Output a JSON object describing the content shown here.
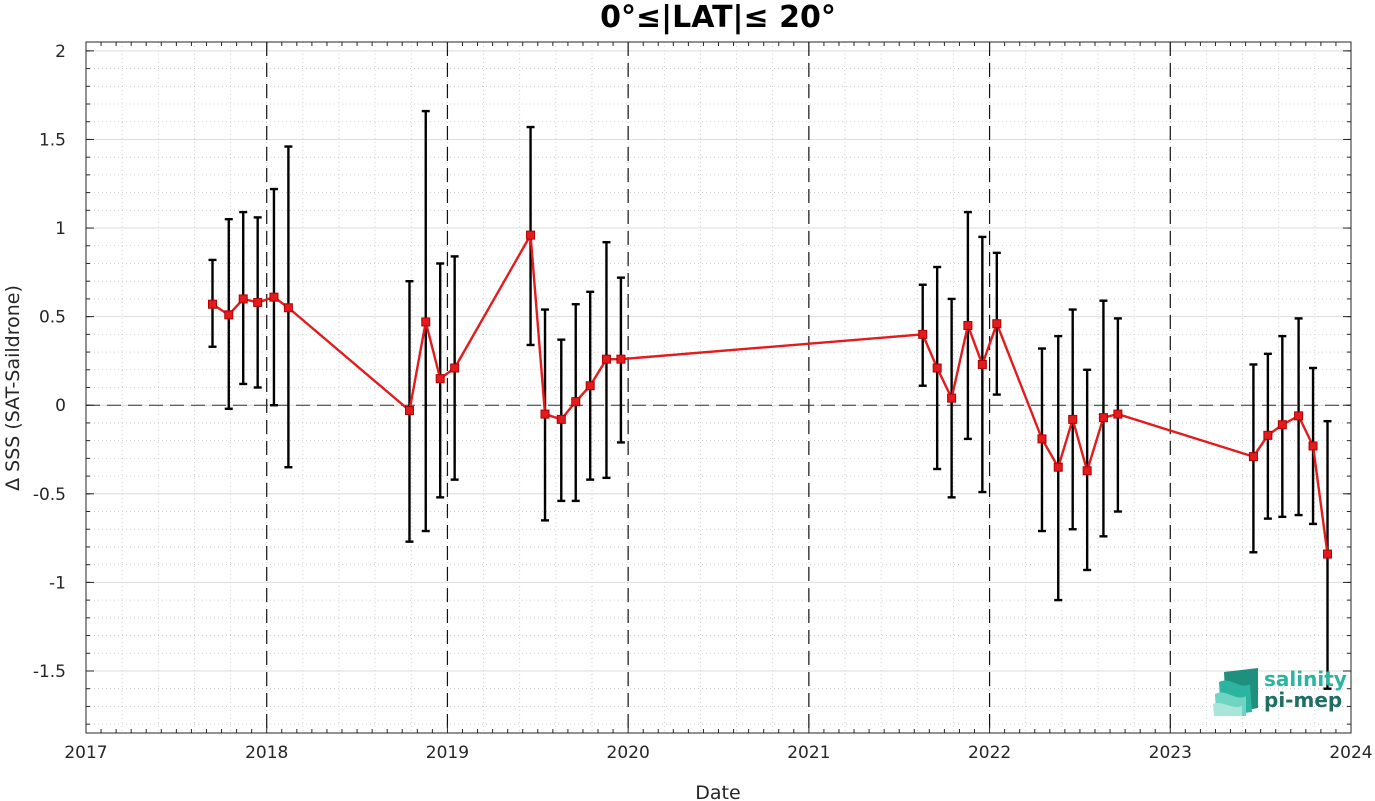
{
  "chart_data": {
    "type": "line",
    "title": "0°≤|LAT|≤ 20°",
    "xlabel": "Date",
    "ylabel": "Δ SSS (SAT-Saildrone)",
    "xlim": [
      2017.0,
      2024.0
    ],
    "ylim": [
      -1.85,
      2.05
    ],
    "xticks": [
      2017,
      2018,
      2019,
      2020,
      2021,
      2022,
      2023,
      2024
    ],
    "xtick_labels": [
      "2017",
      "2018",
      "2019",
      "2020",
      "2021",
      "2022",
      "2023",
      "2024"
    ],
    "yticks": [
      2,
      1.5,
      1,
      0.5,
      0,
      -0.5,
      -1,
      -1.5
    ],
    "ytick_labels": [
      "2",
      "1.5",
      "1",
      "0.5",
      "0",
      "-0.5",
      "-1",
      "-1.5"
    ],
    "grid": "minor dotted",
    "year_boundaries": [
      2018,
      2019,
      2020,
      2021,
      2022,
      2023
    ],
    "zero_line": 0,
    "series": [
      {
        "color": "#e41a1c",
        "errorbar_color": "#000000",
        "marker": "square",
        "x": [
          2017.7,
          2017.79,
          2017.87,
          2017.95,
          2018.04,
          2018.12,
          2018.79,
          2018.88,
          2018.96,
          2019.04,
          2019.46,
          2019.54,
          2019.63,
          2019.71,
          2019.79,
          2019.88,
          2019.96,
          2021.63,
          2021.71,
          2021.79,
          2021.88,
          2021.96,
          2022.04,
          2022.29,
          2022.38,
          2022.46,
          2022.54,
          2022.63,
          2022.71,
          2023.46,
          2023.54,
          2023.62,
          2023.71,
          2023.79,
          2023.87
        ],
        "y": [
          0.57,
          0.51,
          0.6,
          0.58,
          0.61,
          0.55,
          -0.03,
          0.47,
          0.15,
          0.21,
          0.96,
          -0.05,
          -0.08,
          0.02,
          0.11,
          0.26,
          0.26,
          0.4,
          0.21,
          0.04,
          0.45,
          0.23,
          0.46,
          -0.19,
          -0.35,
          -0.08,
          -0.37,
          -0.07,
          -0.05,
          -0.29,
          -0.17,
          -0.11,
          -0.06,
          -0.23,
          -0.84
        ],
        "err_low": [
          0.33,
          -0.02,
          0.12,
          0.1,
          0.0,
          -0.35,
          -0.77,
          -0.71,
          -0.52,
          -0.42,
          0.34,
          -0.65,
          -0.54,
          -0.54,
          -0.42,
          -0.41,
          -0.21,
          0.11,
          -0.36,
          -0.52,
          -0.19,
          -0.49,
          0.06,
          -0.71,
          -1.1,
          -0.7,
          -0.93,
          -0.74,
          -0.6,
          -0.83,
          -0.64,
          -0.63,
          -0.62,
          -0.67,
          -1.6
        ],
        "err_high": [
          0.82,
          1.05,
          1.09,
          1.06,
          1.22,
          1.46,
          0.7,
          1.66,
          0.8,
          0.84,
          1.57,
          0.54,
          0.37,
          0.57,
          0.64,
          0.92,
          0.72,
          0.68,
          0.78,
          0.6,
          1.09,
          0.95,
          0.86,
          0.32,
          0.39,
          0.54,
          0.2,
          0.59,
          0.49,
          0.23,
          0.29,
          0.39,
          0.49,
          0.21,
          -0.09
        ]
      }
    ]
  },
  "logo": {
    "line1": "salinity",
    "line2": "pi-mep",
    "line1_color": "#2bb5a0",
    "line2_color": "#1f6e63"
  }
}
